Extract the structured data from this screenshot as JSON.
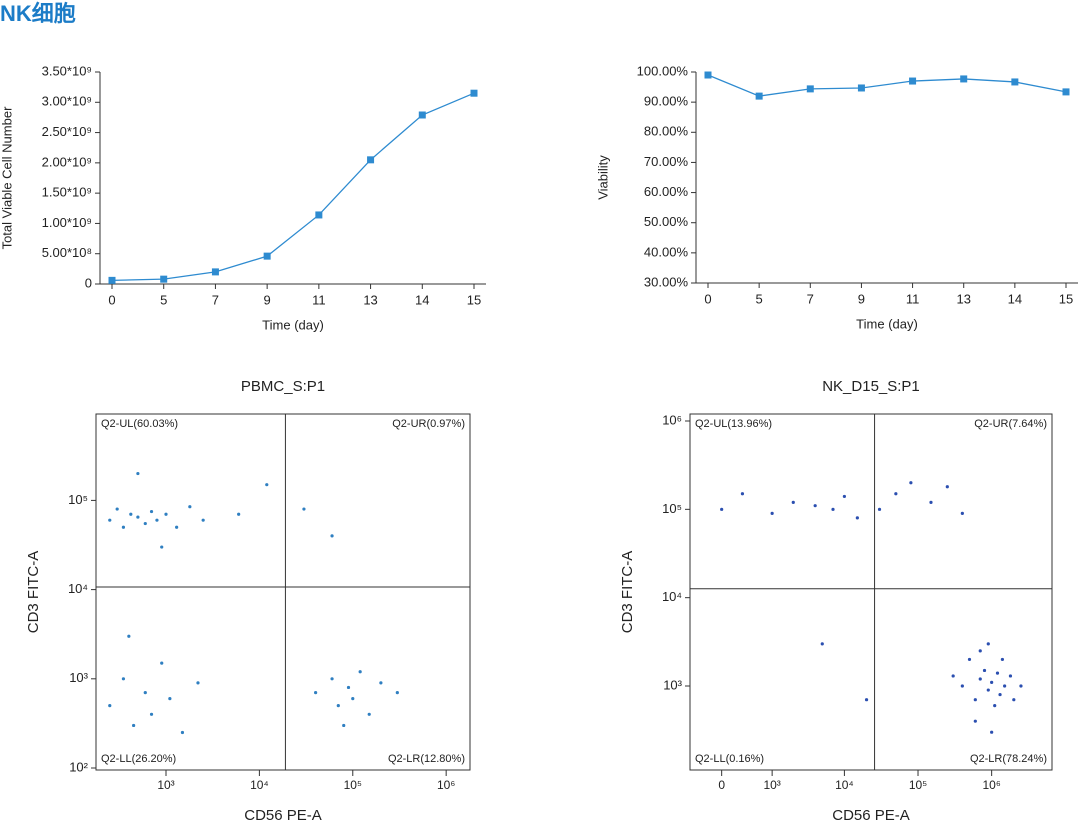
{
  "title": "NK细胞",
  "chart_data": [
    {
      "type": "line",
      "x_label": "Time (day)",
      "y_label": "Total Viable Cell Number",
      "categories": [
        "0",
        "5",
        "7",
        "9",
        "11",
        "13",
        "14",
        "15"
      ],
      "values": [
        60000000,
        80000000,
        200000000,
        460000000,
        1140000000,
        2050000000,
        2790000000,
        3150000000
      ],
      "color": "#2e8bd0",
      "ylim": [
        0,
        3500000000
      ],
      "yticks": [
        0,
        {
          "value": 500000000,
          "label": "5.00*10⁸"
        },
        {
          "value": 1000000000,
          "label": "1.00*10⁹"
        },
        {
          "value": 1500000000,
          "label": "1.50*10⁹"
        },
        {
          "value": 2000000000,
          "label": "2.00*10⁹"
        },
        {
          "value": 2500000000,
          "label": "2.50*10⁹"
        },
        {
          "value": 3000000000,
          "label": "3.00*10⁹"
        },
        {
          "value": 3500000000,
          "label": "3.50*10⁹"
        }
      ]
    },
    {
      "type": "line",
      "x_label": "Time (day)",
      "y_label": "Viability",
      "categories": [
        "0",
        "5",
        "7",
        "9",
        "11",
        "13",
        "14",
        "15"
      ],
      "values": [
        99.0,
        92.0,
        94.4,
        94.7,
        97.0,
        97.7,
        96.7,
        93.4
      ],
      "color": "#2e8bd0",
      "ylim": [
        30,
        100
      ],
      "yticks": [
        {
          "value": 30,
          "label": "30.00%"
        },
        {
          "value": 40,
          "label": "40.00%"
        },
        {
          "value": 50,
          "label": "50.00%"
        },
        {
          "value": 60,
          "label": "60.00%"
        },
        {
          "value": 70,
          "label": "70.00%"
        },
        {
          "value": 80,
          "label": "80.00%"
        },
        {
          "value": 90,
          "label": "90.00%"
        },
        {
          "value": 100,
          "label": "100.00%"
        }
      ]
    },
    {
      "type": "scatter",
      "title": "PBMC_S:P1",
      "x_label": "CD56 PE-A",
      "y_label": "CD3 FITC-A",
      "xscale": "log",
      "yscale": "log",
      "xlim": [
        178,
        1800000
      ],
      "ylim": [
        95,
        930000
      ],
      "xticks": [
        {
          "value": 1000,
          "label": "10³"
        },
        {
          "value": 10000,
          "label": "10⁴"
        },
        {
          "value": 100000,
          "label": "10⁵"
        },
        {
          "value": 1000000,
          "label": "10⁶"
        }
      ],
      "yticks": [
        {
          "value": 100,
          "label": "10²"
        },
        {
          "value": 1000,
          "label": "10³"
        },
        {
          "value": 10000,
          "label": "10⁴"
        },
        {
          "value": 100000,
          "label": "10⁵"
        }
      ],
      "color": "#2f7fc1",
      "quadrant_x": 19000,
      "quadrant_y": 10700,
      "quadrant_labels": [
        "Q2-UL(60.03%)",
        "Q2-UR(0.97%)",
        "Q2-LL(26.20%)",
        "Q2-LR(12.80%)"
      ],
      "x": [
        250,
        300,
        350,
        420,
        500,
        600,
        700,
        800,
        1000,
        1300,
        1800,
        2500,
        6000,
        12000,
        500,
        900,
        30000,
        60000,
        250,
        350,
        450,
        600,
        700,
        900,
        1100,
        1500,
        2200,
        400,
        40000,
        60000,
        70000,
        90000,
        100000,
        120000,
        150000,
        200000,
        300000,
        80000
      ],
      "values": [
        60000,
        80000,
        50000,
        70000,
        65000,
        55000,
        75000,
        60000,
        70000,
        50000,
        85000,
        60000,
        70000,
        150000,
        200000,
        30000,
        80000,
        40000,
        500,
        1000,
        300,
        700,
        400,
        1500,
        600,
        250,
        900,
        3000,
        700,
        1000,
        500,
        800,
        600,
        1200,
        400,
        900,
        700,
        300
      ]
    },
    {
      "type": "scatter",
      "title": "NK_D15_S:P1",
      "x_label": "CD56 PE-A",
      "y_label": "CD3 FITC-A",
      "xscale": "biexponential",
      "yscale": "log",
      "xlim": [
        -500,
        6600000
      ],
      "ylim": [
        112,
        1200000
      ],
      "xticks": [
        0,
        {
          "value": 1000,
          "label": "10³"
        },
        {
          "value": 10000,
          "label": "10⁴"
        },
        {
          "value": 100000,
          "label": "10⁵"
        },
        {
          "value": 1000000,
          "label": "10⁶"
        }
      ],
      "yticks": [
        {
          "value": 1000,
          "label": "10³"
        },
        {
          "value": 10000,
          "label": "10⁴"
        },
        {
          "value": 100000,
          "label": "10⁵"
        },
        {
          "value": 1000000,
          "label": "10⁶"
        }
      ],
      "color": "#2b4fb0",
      "quadrant_x": 25700,
      "quadrant_y": 12600,
      "quadrant_labels": [
        "Q2-UL(13.96%)",
        "Q2-UR(7.64%)",
        "Q2-LL(0.16%)",
        "Q2-LR(78.24%)"
      ],
      "x": [
        0,
        300,
        1000,
        2000,
        4000,
        7000,
        10000,
        15000,
        30000,
        50000,
        80000,
        150000,
        250000,
        400000,
        400000,
        500000,
        600000,
        700000,
        800000,
        900000,
        1000000,
        1100000,
        1200000,
        1300000,
        1500000,
        1800000,
        2000000,
        600000,
        900000,
        1000000,
        700000,
        1400000,
        300000,
        2500000,
        5000,
        20000
      ],
      "values": [
        100000,
        150000,
        90000,
        120000,
        110000,
        100000,
        140000,
        80000,
        100000,
        150000,
        200000,
        120000,
        180000,
        90000,
        1000,
        2000,
        700,
        1200,
        1500,
        900,
        1100,
        600,
        1400,
        800,
        1000,
        1300,
        700,
        400,
        3000,
        300,
        2500,
        2000,
        1300,
        1000,
        3000,
        700
      ]
    }
  ]
}
